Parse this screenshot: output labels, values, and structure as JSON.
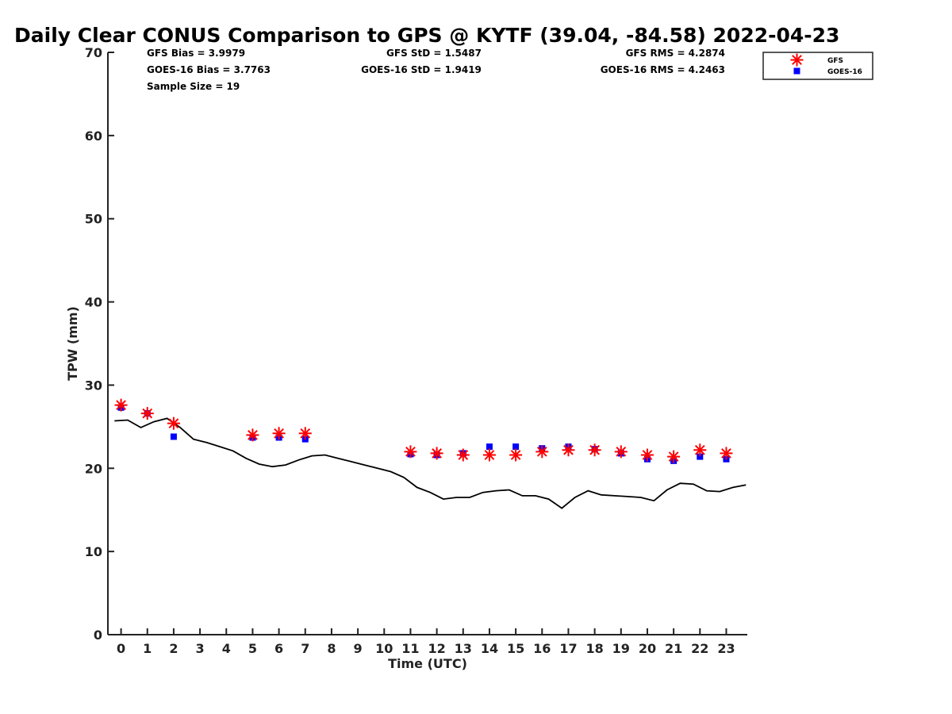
{
  "chart_data": {
    "type": "scatter",
    "title": "Daily Clear CONUS Comparison to GPS @ KYTF (39.04, -84.58) 2022-04-23",
    "xlabel": "Time (UTC)",
    "ylabel": "TPW (mm)",
    "xlim": [
      -0.5,
      23.8
    ],
    "ylim": [
      0,
      70
    ],
    "x_ticks": [
      0,
      1,
      2,
      3,
      4,
      5,
      6,
      7,
      8,
      9,
      10,
      11,
      12,
      13,
      14,
      15,
      16,
      17,
      18,
      19,
      20,
      21,
      22,
      23
    ],
    "y_ticks": [
      0,
      10,
      20,
      30,
      40,
      50,
      60,
      70
    ],
    "grid": false,
    "legend_position": "top-right",
    "stats": {
      "gfs_bias": "GFS Bias = 3.9979",
      "goes_bias": "GOES-16 Bias = 3.7763",
      "sample_size": "Sample Size = 19",
      "gfs_std": "GFS StD = 1.5487",
      "goes_std": "GOES-16 StD = 1.9419",
      "gfs_rms": "GFS RMS = 4.2874",
      "goes_rms": "GOES-16 RMS = 4.2463"
    },
    "series": [
      {
        "name": "GFS",
        "marker": "asterisk",
        "color": "#ff0000",
        "points": [
          [
            0,
            27.6
          ],
          [
            1,
            26.6
          ],
          [
            2,
            25.4
          ],
          [
            5,
            24.0
          ],
          [
            6,
            24.2
          ],
          [
            7,
            24.2
          ],
          [
            11,
            22.0
          ],
          [
            12,
            21.8
          ],
          [
            13,
            21.6
          ],
          [
            14,
            21.6
          ],
          [
            15,
            21.6
          ],
          [
            16,
            22.0
          ],
          [
            17,
            22.2
          ],
          [
            18,
            22.2
          ],
          [
            19,
            22.0
          ],
          [
            20,
            21.6
          ],
          [
            21,
            21.4
          ],
          [
            22,
            22.2
          ],
          [
            23,
            21.8
          ]
        ]
      },
      {
        "name": "GOES-16",
        "marker": "square",
        "color": "#0000ff",
        "points": [
          [
            0,
            27.3
          ],
          [
            1,
            26.6
          ],
          [
            2,
            23.8
          ],
          [
            5,
            23.7
          ],
          [
            6,
            23.7
          ],
          [
            7,
            23.5
          ],
          [
            11,
            21.7
          ],
          [
            12,
            21.6
          ],
          [
            13,
            21.8
          ],
          [
            14,
            22.6
          ],
          [
            15,
            22.6
          ],
          [
            16,
            22.4
          ],
          [
            17,
            22.6
          ],
          [
            18,
            22.3
          ],
          [
            19,
            21.8
          ],
          [
            20,
            21.1
          ],
          [
            21,
            20.9
          ],
          [
            22,
            21.4
          ],
          [
            23,
            21.1
          ]
        ]
      },
      {
        "name": "GPS",
        "marker": "line",
        "color": "#000000",
        "points": [
          [
            -0.25,
            25.7
          ],
          [
            0.25,
            25.8
          ],
          [
            0.75,
            24.9
          ],
          [
            1.25,
            25.6
          ],
          [
            1.75,
            26.0
          ],
          [
            2.25,
            24.9
          ],
          [
            2.75,
            23.5
          ],
          [
            3.25,
            23.1
          ],
          [
            3.75,
            22.6
          ],
          [
            4.25,
            22.1
          ],
          [
            4.75,
            21.2
          ],
          [
            5.25,
            20.5
          ],
          [
            5.75,
            20.2
          ],
          [
            6.25,
            20.4
          ],
          [
            6.75,
            21.0
          ],
          [
            7.25,
            21.5
          ],
          [
            7.75,
            21.6
          ],
          [
            8.25,
            21.2
          ],
          [
            8.75,
            20.8
          ],
          [
            9.25,
            20.4
          ],
          [
            9.75,
            20.0
          ],
          [
            10.25,
            19.6
          ],
          [
            10.75,
            18.9
          ],
          [
            11.25,
            17.7
          ],
          [
            11.75,
            17.1
          ],
          [
            12.25,
            16.3
          ],
          [
            12.75,
            16.5
          ],
          [
            13.25,
            16.5
          ],
          [
            13.75,
            17.1
          ],
          [
            14.25,
            17.3
          ],
          [
            14.75,
            17.4
          ],
          [
            15.25,
            16.7
          ],
          [
            15.75,
            16.7
          ],
          [
            16.25,
            16.3
          ],
          [
            16.75,
            15.2
          ],
          [
            17.25,
            16.5
          ],
          [
            17.75,
            17.3
          ],
          [
            18.25,
            16.8
          ],
          [
            18.75,
            16.7
          ],
          [
            19.25,
            16.6
          ],
          [
            19.75,
            16.5
          ],
          [
            20.25,
            16.1
          ],
          [
            20.75,
            17.4
          ],
          [
            21.25,
            18.2
          ],
          [
            21.75,
            18.1
          ],
          [
            22.25,
            17.3
          ],
          [
            22.75,
            17.2
          ],
          [
            23.25,
            17.7
          ],
          [
            23.75,
            18.0
          ]
        ]
      }
    ]
  }
}
